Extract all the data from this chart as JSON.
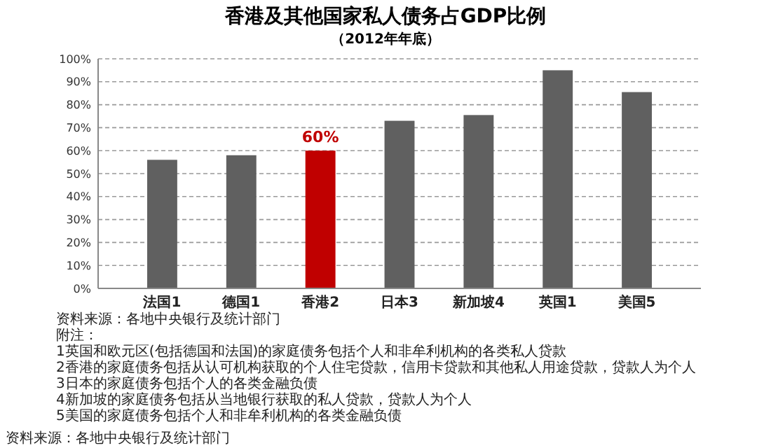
{
  "chart_data": {
    "type": "bar",
    "title": "香港及其他国家私人债务占GDP比例",
    "subtitle": "（2012年年底）",
    "categories": [
      "法国1",
      "德国1",
      "香港2",
      "日本3",
      "新加坡4",
      "英国1",
      "美国5"
    ],
    "values": [
      56,
      58,
      60,
      73,
      75.5,
      95,
      85.5
    ],
    "colors": [
      "#606060",
      "#606060",
      "#c00000",
      "#606060",
      "#606060",
      "#606060",
      "#606060"
    ],
    "value_labels": [
      null,
      null,
      "60%",
      null,
      null,
      null,
      null
    ],
    "ylim": [
      0,
      100
    ],
    "yticks": [
      {
        "value": 0,
        "label": "0%"
      },
      {
        "value": 10,
        "label": "10%"
      },
      {
        "value": 20,
        "label": "20%"
      },
      {
        "value": 30,
        "label": "30%"
      },
      {
        "value": 40,
        "label": "40%"
      },
      {
        "value": 50,
        "label": "50%"
      },
      {
        "value": 60,
        "label": "60%"
      },
      {
        "value": 70,
        "label": "70%"
      },
      {
        "value": 80,
        "label": "80%"
      },
      {
        "value": 90,
        "label": "90%"
      },
      {
        "value": 100,
        "label": "100%"
      }
    ],
    "grid": "y",
    "line_style": "dashed",
    "annotations": [
      "资料来源：各地中央银行及统计部门",
      "附注：",
      "1英国和欧元区(包括德国和法国)的家庭债务包括个人和非牟利机构的各类私人贷款",
      "2香港的家庭债务包括从认可机构获取的个人住宅贷款，信用卡贷款和其他私人用途贷款，贷款人为个人",
      "3日本的家庭债务包括个人的各类金融负债",
      "4新加坡的家庭债务包括从当地银行获取的私人贷款，贷款人为个人",
      "5美国的家庭债务包括个人和非牟利机构的各类金融负债",
      "资料来源：各地中央银行及统计部门"
    ]
  }
}
